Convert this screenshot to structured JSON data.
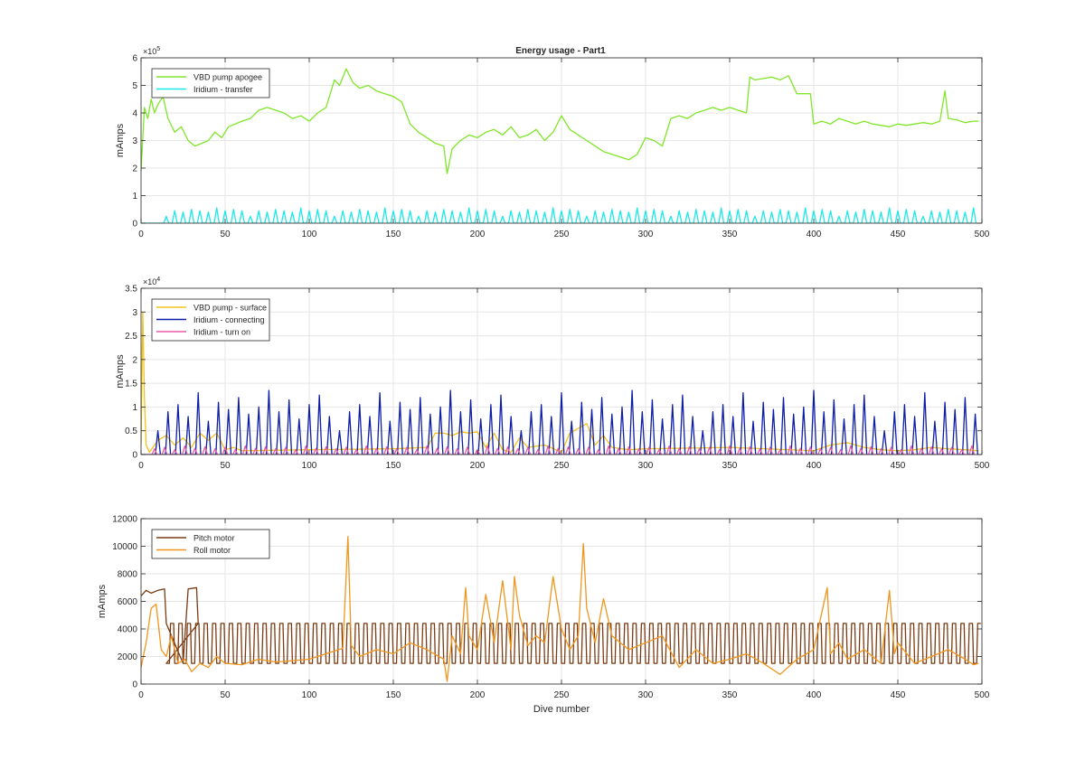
{
  "window": {
    "title": "Energy usage - Part1"
  },
  "chart_data": [
    {
      "type": "line",
      "title": "Energy usage - Part1",
      "xlabel": "",
      "ylabel": "mAmps",
      "xlim": [
        0,
        500
      ],
      "ylim": [
        0,
        600000
      ],
      "exponent_label": "×10",
      "exponent_power": "5",
      "x_ticks": [
        0,
        50,
        100,
        150,
        200,
        250,
        300,
        350,
        400,
        450,
        500
      ],
      "y_ticks": [
        0,
        100000,
        200000,
        300000,
        400000,
        500000,
        600000
      ],
      "y_tick_labels": [
        "0",
        "1",
        "2",
        "3",
        "4",
        "5",
        "6"
      ],
      "grid": true,
      "legend": "top-left",
      "series": [
        {
          "name": "VBD pump apogee",
          "color": "#80e62a",
          "x": [
            0,
            2,
            4,
            6,
            8,
            10,
            13,
            16,
            20,
            24,
            28,
            32,
            36,
            40,
            44,
            48,
            52,
            56,
            60,
            65,
            70,
            75,
            80,
            85,
            90,
            95,
            100,
            105,
            110,
            115,
            118,
            122,
            126,
            130,
            135,
            140,
            145,
            150,
            155,
            160,
            165,
            170,
            175,
            180,
            182,
            185,
            190,
            195,
            200,
            205,
            210,
            215,
            220,
            225,
            230,
            235,
            240,
            245,
            250,
            255,
            260,
            265,
            270,
            275,
            280,
            285,
            290,
            295,
            300,
            305,
            310,
            315,
            320,
            325,
            330,
            335,
            340,
            345,
            350,
            355,
            360,
            362,
            365,
            370,
            375,
            380,
            385,
            390,
            395,
            398,
            400,
            405,
            410,
            415,
            420,
            425,
            430,
            435,
            440,
            445,
            450,
            455,
            460,
            465,
            470,
            475,
            478,
            480,
            485,
            490,
            495,
            498
          ],
          "values": [
            190000,
            420000,
            380000,
            450000,
            400000,
            430000,
            460000,
            380000,
            330000,
            350000,
            300000,
            280000,
            290000,
            300000,
            330000,
            310000,
            350000,
            360000,
            370000,
            380000,
            410000,
            420000,
            410000,
            400000,
            380000,
            390000,
            370000,
            400000,
            420000,
            520000,
            500000,
            560000,
            510000,
            490000,
            500000,
            480000,
            470000,
            460000,
            440000,
            360000,
            330000,
            310000,
            290000,
            280000,
            180000,
            270000,
            300000,
            320000,
            310000,
            330000,
            340000,
            320000,
            350000,
            310000,
            320000,
            340000,
            300000,
            330000,
            390000,
            340000,
            320000,
            300000,
            280000,
            260000,
            250000,
            240000,
            230000,
            250000,
            310000,
            300000,
            280000,
            380000,
            390000,
            380000,
            400000,
            410000,
            420000,
            410000,
            420000,
            410000,
            400000,
            530000,
            520000,
            525000,
            530000,
            520000,
            535000,
            470000,
            470000,
            470000,
            360000,
            370000,
            360000,
            380000,
            370000,
            360000,
            370000,
            360000,
            355000,
            350000,
            360000,
            355000,
            360000,
            365000,
            360000,
            370000,
            480000,
            380000,
            375000,
            365000,
            370000,
            370000
          ]
        },
        {
          "name": "Iridium - transfer",
          "color": "#1de8e8",
          "pattern": "spikes",
          "base": 0,
          "spike_start": 15,
          "spike_end": 498,
          "spike_period": 5,
          "spike_heights": [
            25000,
            45000,
            40000,
            50000,
            45000,
            40000,
            55000,
            45000,
            50000,
            45000
          ]
        }
      ]
    },
    {
      "type": "line",
      "title": "",
      "xlabel": "",
      "ylabel": "mAmps",
      "xlim": [
        0,
        500
      ],
      "ylim": [
        0,
        35000
      ],
      "exponent_label": "×10",
      "exponent_power": "4",
      "x_ticks": [
        0,
        50,
        100,
        150,
        200,
        250,
        300,
        350,
        400,
        450,
        500
      ],
      "y_ticks": [
        0,
        5000,
        10000,
        15000,
        20000,
        25000,
        30000,
        35000
      ],
      "y_tick_labels": [
        "0",
        "0.5",
        "1",
        "1.5",
        "2",
        "2.5",
        "3",
        "3.5"
      ],
      "grid": true,
      "legend": "top-left",
      "series": [
        {
          "name": "VBD pump - surface",
          "color": "#f2c21b",
          "x": [
            0,
            1,
            2,
            3,
            5,
            10,
            15,
            20,
            25,
            30,
            35,
            40,
            45,
            50,
            55,
            60,
            100,
            150,
            170,
            175,
            180,
            185,
            190,
            195,
            200,
            205,
            210,
            215,
            220,
            225,
            230,
            240,
            250,
            255,
            260,
            265,
            270,
            275,
            280,
            290,
            300,
            350,
            400,
            410,
            420,
            430,
            440,
            450,
            460,
            470,
            480,
            490,
            498
          ],
          "values": [
            2000,
            30000,
            12000,
            2000,
            500,
            3000,
            4000,
            2000,
            3500,
            1500,
            4500,
            3000,
            4500,
            1000,
            1500,
            800,
            1000,
            1200,
            1500,
            4500,
            4500,
            4000,
            4800,
            4500,
            4800,
            1500,
            4500,
            1000,
            500,
            3500,
            1500,
            2000,
            500,
            4500,
            5500,
            6500,
            2000,
            4000,
            1500,
            1000,
            1200,
            1500,
            800,
            2000,
            2500,
            1500,
            1000,
            800,
            1000,
            1500,
            1200,
            1000,
            800
          ]
        },
        {
          "name": "Iridium - connecting",
          "color": "#0f1ea8",
          "pattern": "spikes",
          "base": 0,
          "spike_start": 10,
          "spike_end": 498,
          "spike_period": 6,
          "spike_heights": [
            5000,
            9000,
            10500,
            8000,
            13000,
            7000,
            11000,
            9500,
            12000,
            8500,
            10000,
            13500,
            9000,
            11500,
            7500,
            10500,
            12500,
            8000
          ]
        },
        {
          "name": "Iridium - turn on",
          "color": "#e85aa8",
          "pattern": "spikes",
          "base": 0,
          "spike_start": 8,
          "spike_end": 498,
          "spike_period": 6,
          "spike_heights": [
            1200,
            1500,
            1000,
            1800,
            1300,
            1600
          ]
        }
      ]
    },
    {
      "type": "line",
      "title": "",
      "xlabel": "Dive number",
      "ylabel": "mAmps",
      "xlim": [
        0,
        500
      ],
      "ylim": [
        0,
        12000
      ],
      "x_ticks": [
        0,
        50,
        100,
        150,
        200,
        250,
        300,
        350,
        400,
        450,
        500
      ],
      "y_ticks": [
        0,
        2000,
        4000,
        6000,
        8000,
        10000,
        12000
      ],
      "y_tick_labels": [
        "0",
        "2000",
        "4000",
        "6000",
        "8000",
        "10000",
        "12000"
      ],
      "grid": true,
      "legend": "top-left",
      "series": [
        {
          "name": "Pitch motor",
          "color": "#7a3b12",
          "pattern": "square",
          "x_start": 15,
          "x_end": 498,
          "period": 5,
          "low": 1500,
          "high": 4400,
          "lead_x": [
            0,
            3,
            6,
            10,
            14,
            15,
            25,
            28,
            33,
            34
          ],
          "lead_values": [
            6400,
            6800,
            6600,
            6800,
            6900,
            4400,
            1500,
            6900,
            7000,
            4400
          ]
        },
        {
          "name": "Roll motor",
          "color": "#f0961e",
          "x": [
            0,
            3,
            6,
            9,
            12,
            15,
            18,
            22,
            26,
            30,
            35,
            40,
            45,
            50,
            60,
            70,
            80,
            90,
            100,
            110,
            120,
            123,
            125,
            130,
            140,
            150,
            160,
            170,
            180,
            182,
            185,
            190,
            193,
            195,
            200,
            205,
            210,
            215,
            220,
            222,
            225,
            230,
            235,
            240,
            245,
            250,
            255,
            260,
            263,
            265,
            270,
            275,
            280,
            290,
            300,
            310,
            320,
            330,
            340,
            350,
            360,
            370,
            380,
            390,
            400,
            408,
            410,
            415,
            420,
            430,
            440,
            445,
            448,
            450,
            460,
            470,
            480,
            490,
            495,
            498
          ],
          "values": [
            1200,
            3000,
            5500,
            5800,
            2500,
            2000,
            3500,
            1500,
            1800,
            900,
            1500,
            1200,
            2000,
            1500,
            1400,
            1800,
            1600,
            1700,
            1800,
            2200,
            2600,
            10700,
            2800,
            2000,
            2500,
            2200,
            3000,
            2500,
            1800,
            200,
            3500,
            2200,
            7000,
            3500,
            2500,
            6500,
            3000,
            7500,
            2500,
            7800,
            5000,
            2800,
            3500,
            3000,
            7800,
            4000,
            2500,
            3500,
            10200,
            5500,
            3000,
            6200,
            3500,
            2500,
            3000,
            3500,
            1200,
            2500,
            1500,
            1800,
            2200,
            1500,
            700,
            1800,
            2500,
            7000,
            2200,
            3000,
            1800,
            2500,
            1500,
            6800,
            2200,
            3000,
            1500,
            2000,
            2500,
            1800,
            1400,
            1500
          ]
        }
      ]
    }
  ]
}
